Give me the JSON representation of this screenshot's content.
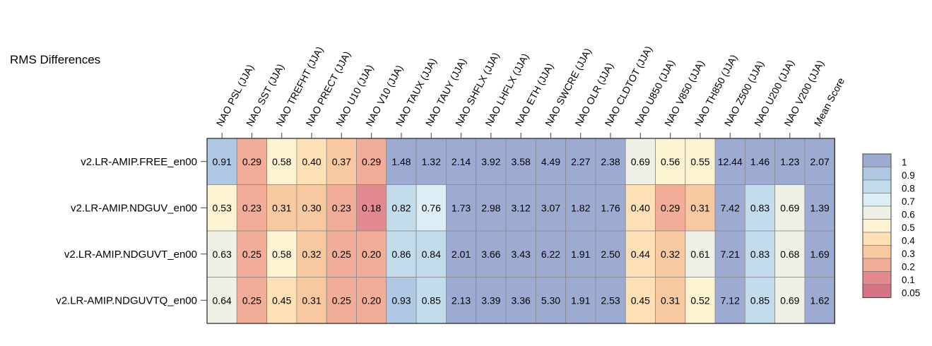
{
  "chart_data": {
    "type": "heatmap",
    "title": "RMS Differences",
    "columns": [
      "NAO PSL (JJA)",
      "NAO SST (JJA)",
      "NAO TREFHT (JJA)",
      "NAO PRECT (JJA)",
      "NAO U10 (JJA)",
      "NAO V10 (JJA)",
      "NAO TAUX (JJA)",
      "NAO TAUY (JJA)",
      "NAO SHFLX (JJA)",
      "NAO LHFLX (JJA)",
      "NAO ETH (JJA)",
      "NAO SWCRE (JJA)",
      "NAO OLR (JJA)",
      "NAO CLDTOT (JJA)",
      "NAO U850 (JJA)",
      "NAO V850 (JJA)",
      "NAO TH850 (JJA)",
      "NAO Z500 (JJA)",
      "NAO U200 (JJA)",
      "NAO V200 (JJA)",
      "Mean Score"
    ],
    "rows": [
      "v2.LR-AMIP.FREE_en00",
      "v2.LR-AMIP.NDGUV_en00",
      "v2.LR-AMIP.NDGUVT_en00",
      "v2.LR-AMIP.NDGUVTQ_en00"
    ],
    "values": [
      [
        0.91,
        0.29,
        0.58,
        0.4,
        0.37,
        0.29,
        1.48,
        1.32,
        2.14,
        3.92,
        3.58,
        4.49,
        2.27,
        2.38,
        0.69,
        0.56,
        0.55,
        12.44,
        1.46,
        1.23,
        2.07
      ],
      [
        0.53,
        0.23,
        0.31,
        0.3,
        0.23,
        0.18,
        0.82,
        0.76,
        1.73,
        2.98,
        3.12,
        3.07,
        1.82,
        1.76,
        0.4,
        0.29,
        0.31,
        7.42,
        0.83,
        0.69,
        1.39
      ],
      [
        0.63,
        0.25,
        0.58,
        0.32,
        0.25,
        0.2,
        0.86,
        0.84,
        2.01,
        3.66,
        3.43,
        6.22,
        1.91,
        2.5,
        0.44,
        0.32,
        0.61,
        7.21,
        0.83,
        0.68,
        1.69
      ],
      [
        0.64,
        0.25,
        0.45,
        0.31,
        0.25,
        0.2,
        0.93,
        0.85,
        2.13,
        3.39,
        3.36,
        5.3,
        1.91,
        2.53,
        0.45,
        0.31,
        0.52,
        7.12,
        0.85,
        0.69,
        1.62
      ]
    ],
    "colorbar": {
      "labels": [
        "1",
        "0.9",
        "0.8",
        "0.7",
        "0.6",
        "0.5",
        "0.4",
        "0.3",
        "0.2",
        "0.1",
        "0.05"
      ],
      "colors": [
        "#9dabd3",
        "#afc8e3",
        "#c3dcec",
        "#dcedf4",
        "#eff0e6",
        "#fdf2d1",
        "#fde0b5",
        "#f8c9a1",
        "#f1ad98",
        "#e38a90",
        "#d57485"
      ],
      "position": "right"
    }
  }
}
